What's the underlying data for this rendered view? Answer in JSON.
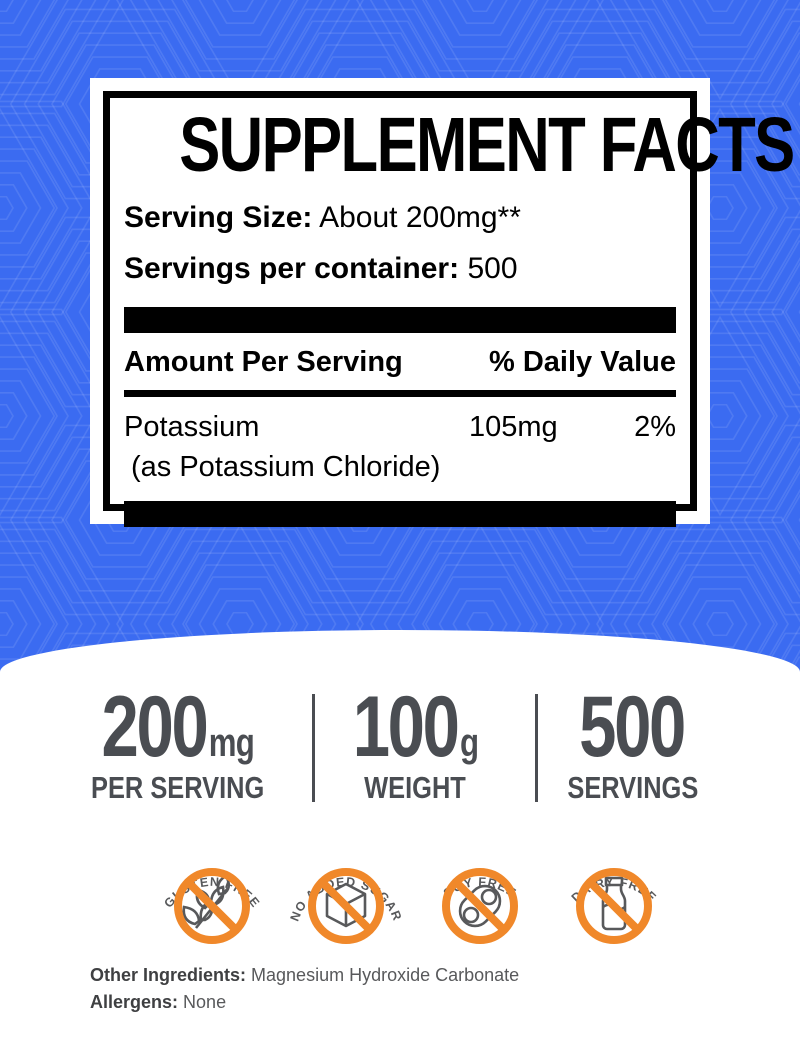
{
  "colors": {
    "blue": "#3b6bf1",
    "accent": "#f0882a",
    "gray": "#4a4d52",
    "glyph": "#58595b"
  },
  "panel": {
    "title": "SUPPLEMENT FACTS",
    "serving_size_label": "Serving Size:",
    "serving_size_value": "About 200mg**",
    "servings_label": "Servings per container:",
    "servings_value": "500",
    "amount_header": "Amount Per Serving",
    "dv_header": "% Daily Value",
    "rows": [
      {
        "name": "Potassium",
        "name_detail": "(as Potassium Chloride)",
        "amount": "105mg",
        "dv": "2%"
      }
    ]
  },
  "stats": [
    {
      "value": "200",
      "unit": "mg",
      "label": "PER SERVING"
    },
    {
      "value": "100",
      "unit": "g",
      "label": "WEIGHT"
    },
    {
      "value": "500",
      "unit": "",
      "label": "SERVINGS"
    }
  ],
  "badges": [
    {
      "label": "GLUTEN FREE",
      "icon": "wheat-icon"
    },
    {
      "label": "NO ADDED SUGAR",
      "icon": "sugar-cube-icon"
    },
    {
      "label": "SOY FREE",
      "icon": "soybean-icon"
    },
    {
      "label": "DAIRY FREE",
      "icon": "milk-bottle-icon"
    }
  ],
  "footer": {
    "other_ingredients_label": "Other Ingredients:",
    "other_ingredients_value": "Magnesium Hydroxide Carbonate",
    "allergens_label": "Allergens:",
    "allergens_value": "None"
  }
}
